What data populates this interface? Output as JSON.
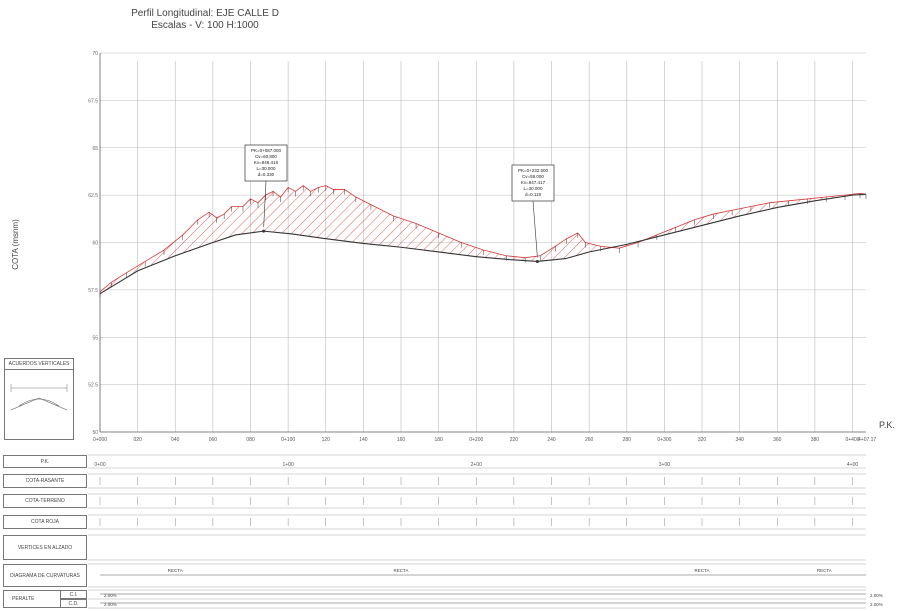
{
  "title": {
    "line1": "Perfil Longitudinal: EJE CALLE D",
    "line2": "Escalas - V: 100 H:1000"
  },
  "axis": {
    "ylabel": "COTA (msnm)",
    "xlabel": "P.K."
  },
  "legend": {
    "title": "ACUERDOS VERTICALES"
  },
  "rows": {
    "pk": "P.K.",
    "rasante": "COTA-RASANTE",
    "terreno": "COTA-TERRENO",
    "roja": "COTA ROJA",
    "vertices": "VERTICES EN ALZADO",
    "curvaturas": "DIAGRAMA DE CURVATURAS",
    "peralte": "PERALTE",
    "ci": "C.I.",
    "cd": "C.D."
  },
  "curvature_labels": [
    "RECTA",
    "RECTA",
    "RECTA",
    "RECTA"
  ],
  "peralte_values": [
    "2.00%",
    "2.00%",
    "2.00%",
    "2.00%"
  ],
  "callouts": [
    {
      "lines": [
        "PK=0+087.000",
        "Cv=60.800",
        "Kv=946.416",
        "L=30.000",
        "d=0.330"
      ]
    },
    {
      "lines": [
        "PK=0+232.500",
        "Cv=59.000",
        "Kv=947.417",
        "L=30.000",
        "d=0.119"
      ]
    }
  ],
  "chart_data": {
    "type": "line",
    "xlim": [
      0,
      407.17
    ],
    "ylim": [
      50,
      70
    ],
    "yticks": [
      50,
      52.5,
      55,
      57.5,
      60,
      62.5,
      65,
      67.5,
      70
    ],
    "xticks": [
      0,
      20,
      40,
      60,
      80,
      100,
      120,
      140,
      160,
      180,
      200,
      220,
      240,
      260,
      280,
      300,
      320,
      340,
      360,
      380,
      400
    ],
    "xtick_labels": [
      "0+000",
      "020",
      "040",
      "060",
      "080",
      "0+100",
      "120",
      "140",
      "160",
      "180",
      "0+200",
      "220",
      "240",
      "260",
      "280",
      "0+300",
      "320",
      "340",
      "360",
      "380",
      "0+400"
    ],
    "end_label": "4+07.17",
    "table_pk_labels": [
      "0+00",
      "1+00",
      "2+00",
      "3+00",
      "4+00"
    ],
    "series": [
      {
        "x": [
          0,
          20,
          40,
          60,
          72,
          87,
          102,
          120,
          140,
          160,
          180,
          200,
          217.5,
          232.5,
          247.5,
          260,
          280,
          300,
          320,
          340,
          360,
          380,
          400,
          407.17
        ],
        "y": [
          57.3,
          58.5,
          59.3,
          60.0,
          60.4,
          60.6,
          60.45,
          60.2,
          59.95,
          59.75,
          59.5,
          59.25,
          59.1,
          59.0,
          59.15,
          59.5,
          59.9,
          60.4,
          60.9,
          61.4,
          61.85,
          62.2,
          62.5,
          62.55
        ]
      },
      {
        "x": [
          0,
          6,
          14,
          24,
          34,
          44,
          52,
          58,
          62,
          66,
          70,
          76,
          80,
          84,
          88,
          92,
          96,
          100,
          104,
          108,
          112,
          116,
          120,
          124,
          130,
          136,
          144,
          156,
          168,
          180,
          192,
          204,
          216,
          226,
          234,
          242,
          248,
          254,
          258,
          266,
          276,
          286,
          296,
          306,
          316,
          326,
          336,
          346,
          356,
          366,
          376,
          386,
          396,
          404,
          407.17
        ],
        "y": [
          57.4,
          57.9,
          58.4,
          59.0,
          59.6,
          60.4,
          61.2,
          61.6,
          61.3,
          61.5,
          61.9,
          61.9,
          62.3,
          62.1,
          62.5,
          62.7,
          62.4,
          62.9,
          62.7,
          63.0,
          62.7,
          62.9,
          63.0,
          62.8,
          62.8,
          62.4,
          62.0,
          61.4,
          61.0,
          60.5,
          60.0,
          59.6,
          59.3,
          59.2,
          59.3,
          59.8,
          60.2,
          60.5,
          60.0,
          59.8,
          59.7,
          60.0,
          60.4,
          60.8,
          61.2,
          61.5,
          61.7,
          61.9,
          62.1,
          62.2,
          62.3,
          62.4,
          62.5,
          62.6,
          62.55
        ]
      }
    ]
  },
  "colors": {
    "line": "#333333",
    "grid": "#bbbbbb",
    "hatch": "#d93636",
    "green": "#2a9d3a"
  }
}
